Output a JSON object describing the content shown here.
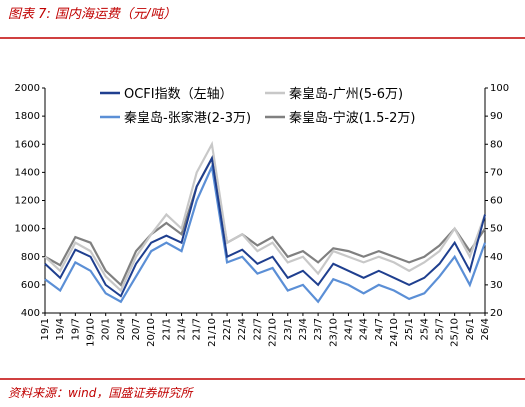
{
  "header": {
    "title": "图表 7:  国内海运费（元/吨）"
  },
  "footer": {
    "source": "资料来源：wind，国盛证券研究所"
  },
  "chart_data": {
    "type": "line",
    "categories": [
      "19/1",
      "19/4",
      "19/7",
      "19/10",
      "20/1",
      "20/4",
      "20/7",
      "20/10",
      "21/1",
      "21/4",
      "21/7",
      "21/10",
      "22/1",
      "22/4",
      "22/7",
      "22/10",
      "23/1",
      "23/4",
      "23/7",
      "23/10",
      "24/1",
      "24/4",
      "24/7",
      "24/10",
      "25/1",
      "25/4",
      "25/7",
      "25/10",
      "26/1",
      "26/4"
    ],
    "ylim": [
      400,
      2000
    ],
    "yticks": [
      400,
      600,
      800,
      1000,
      1200,
      1400,
      1600,
      1800,
      2000
    ],
    "y2lim": [
      20,
      100
    ],
    "y2ticks": [
      20,
      30,
      40,
      50,
      60,
      70,
      80,
      90,
      100
    ],
    "series": [
      {
        "name": "OCFI指数（左轴）",
        "color": "#1f3f8f",
        "values": [
          750,
          650,
          850,
          800,
          600,
          520,
          750,
          900,
          950,
          900,
          1300,
          1500,
          800,
          850,
          750,
          800,
          650,
          700,
          600,
          750,
          700,
          650,
          700,
          650,
          600,
          650,
          750,
          900,
          700,
          1100
        ]
      },
      {
        "name": "秦皇岛-广州(5-6万)",
        "color": "#c8c8c8",
        "axis": "y2",
        "values": [
          40,
          35,
          45,
          42,
          33,
          28,
          40,
          48,
          55,
          50,
          70,
          80,
          45,
          48,
          42,
          45,
          38,
          40,
          34,
          42,
          40,
          38,
          40,
          38,
          35,
          38,
          42,
          50,
          40,
          55
        ]
      },
      {
        "name": "秦皇岛-张家港(2-3万)",
        "color": "#5b8fd6",
        "axis": "y2",
        "values": [
          32,
          28,
          38,
          35,
          27,
          24,
          33,
          42,
          45,
          42,
          60,
          72,
          38,
          40,
          34,
          36,
          28,
          30,
          24,
          32,
          30,
          27,
          30,
          28,
          25,
          27,
          33,
          40,
          30,
          45
        ]
      },
      {
        "name": "秦皇岛-宁波(1.5-2万)",
        "color": "#808080",
        "axis": "y2",
        "values": [
          40,
          37,
          47,
          45,
          35,
          30,
          42,
          48,
          52,
          48,
          65,
          75,
          45,
          48,
          44,
          47,
          40,
          42,
          38,
          43,
          42,
          40,
          42,
          40,
          38,
          40,
          44,
          50,
          42,
          50
        ]
      }
    ]
  }
}
